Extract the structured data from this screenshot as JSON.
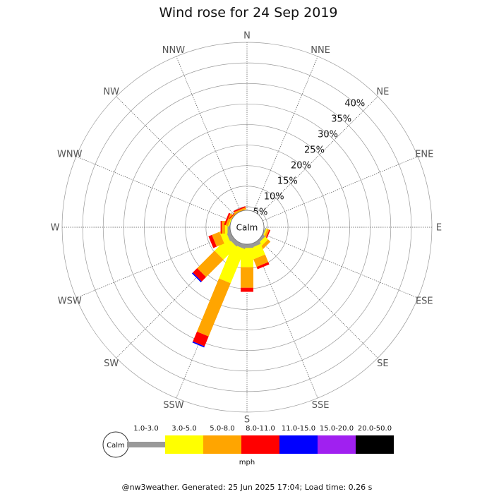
{
  "chart_data": {
    "type": "wind-rose",
    "title": "Wind rose for 24 Sep 2019",
    "directions": [
      "N",
      "NNE",
      "NE",
      "ENE",
      "E",
      "ESE",
      "SE",
      "SSE",
      "S",
      "SSW",
      "SW",
      "WSW",
      "W",
      "WNW",
      "NW",
      "NNW"
    ],
    "radial_labels": [
      "5%",
      "10%",
      "15%",
      "20%",
      "25%",
      "30%",
      "35%",
      "40%"
    ],
    "radial_max": 45,
    "grid": true,
    "center_label": "Calm",
    "speed_bins": [
      {
        "label": "1.0-3.0",
        "color": "#999999"
      },
      {
        "label": "3.0-5.0",
        "color": "#ffff00"
      },
      {
        "label": "5.0-8.0",
        "color": "#ffa500"
      },
      {
        "label": "8.0-11.0",
        "color": "#ff0000"
      },
      {
        "label": "11.0-15.0",
        "color": "#0000ff"
      },
      {
        "label": "15.0-20.0",
        "color": "#a020f0"
      },
      {
        "label": "20.0-50.0",
        "color": "#000000"
      }
    ],
    "units": "mph",
    "series": [
      {
        "direction": "N",
        "values": [
          0,
          0,
          0,
          0,
          0,
          0,
          0
        ]
      },
      {
        "direction": "NNE",
        "values": [
          0,
          0,
          0,
          0,
          0,
          0,
          0
        ]
      },
      {
        "direction": "NE",
        "values": [
          0,
          0,
          0,
          0,
          0,
          0,
          0
        ]
      },
      {
        "direction": "ENE",
        "values": [
          0,
          0,
          0,
          0,
          0,
          0,
          0
        ]
      },
      {
        "direction": "E",
        "values": [
          0,
          0,
          0,
          0,
          0,
          0,
          0
        ]
      },
      {
        "direction": "ESE",
        "values": [
          0.3,
          0.3,
          0.5,
          0.3,
          0,
          0,
          0
        ]
      },
      {
        "direction": "SE",
        "values": [
          0.6,
          1.0,
          0.8,
          0,
          0,
          0,
          0
        ]
      },
      {
        "direction": "SSE",
        "values": [
          0.9,
          2.8,
          2.0,
          0.6,
          0,
          0,
          0
        ]
      },
      {
        "direction": "S",
        "values": [
          0.9,
          4.7,
          5.0,
          1.0,
          0,
          0,
          0
        ]
      },
      {
        "direction": "SSW",
        "values": [
          1.0,
          9.0,
          14.0,
          2.6,
          0.3,
          0,
          0
        ]
      },
      {
        "direction": "SW",
        "values": [
          1.0,
          4.5,
          6.0,
          1.5,
          0.3,
          0,
          0
        ]
      },
      {
        "direction": "WSW",
        "values": [
          1.0,
          1.5,
          2.0,
          0.9,
          0,
          0,
          0
        ]
      },
      {
        "direction": "W",
        "values": [
          0.6,
          0.6,
          0.8,
          0.3,
          0,
          0,
          0
        ]
      },
      {
        "direction": "WNW",
        "values": [
          0,
          0.3,
          0.6,
          0.4,
          0,
          0,
          0
        ]
      },
      {
        "direction": "NW",
        "values": [
          0,
          0,
          0.3,
          0.2,
          0,
          0,
          0
        ]
      },
      {
        "direction": "NNW",
        "values": [
          0,
          0,
          0.5,
          0.3,
          0,
          0,
          0
        ]
      }
    ]
  },
  "footer": "@nw3weather. Generated: 25 Jun 2025 17:04; Load time: 0.26 s"
}
